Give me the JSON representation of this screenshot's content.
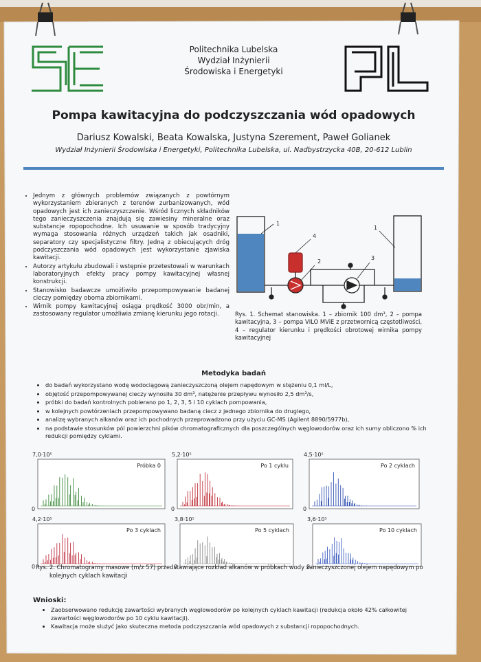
{
  "header": {
    "institution": [
      "Politechnika Lubelska",
      "Wydział Inżynierii",
      "Środowiska i Energetyki"
    ],
    "title": "Pompa kawitacyjna do podczyszczania wód opadowych",
    "authors": "Dariusz Kowalski, Beata Kowalska, Justyna Szerement, Paweł Golianek",
    "affiliation": "Wydział Inżynierii Środowiska i Energetyki, Politechnika Lubelska, ul. Nadbystrzycka 40B, 20-612 Lublin"
  },
  "intro": {
    "bullets": [
      "Jednym z głównych problemów związanych z powtórnym wykorzystaniem zbieranych z terenów zurbanizowanych, wód opadowych jest ich zanieczyszczenie. Wśród licznych składników tego zanieczyszczenia znajdują się zawiesiny mineralne oraz substancje ropopochodne. Ich usuwanie w sposób tradycyjny wymaga stosowania różnych urządzeń takich jak osadniki, separatory czy specjalistyczne filtry. Jedną z obiecujących dróg podczyszczania wód opadowych jest wykorzystanie zjawiska kawitacji.",
      "Autorzy artykułu zbudowali i wstępnie przetestowali w warunkach laboratoryjnych efekty pracy pompy kawitacyjnej własnej konstrukcji.",
      "Stanowisko badawcze umożliwiło przepompowywanie badanej cieczy pomiędzy oboma zbiornikami.",
      "Wirnik pompy kawitacyjnej osiąga prędkość 3000 obr/min, a zastosowany regulator umożliwia zmianę kierunku jego rotacji."
    ]
  },
  "figure1": {
    "labels": [
      "1",
      "4",
      "2",
      "3",
      "1"
    ],
    "caption": "Rys. 1. Schemat stanowiska. 1 – zbiornik 100 dm³, 2 – pompa kawitacyjna, 3 – pompa VILO MViE z przetwornicą częstotliwości, 4 – regulator kierunku i prędkości obrotowej wirnika pompy kawitacyjnej"
  },
  "methods": {
    "heading": "Metodyka badań",
    "bullets": [
      "do badań wykorzystano wodę wodociągową zanieczyszczoną olejem napędowym w stężeniu 0,1 ml/L,",
      "objętość przepompowywanej cieczy wynosiła 30 dm³, natężenie przepływu wynosiło 2,5 dm³/s,",
      "próbki do badań kontrolnych pobierano po 1, 2, 3, 5 i 10 cyklach pompowania,",
      "w kolejnych powtórzeniach przepompowywano badaną ciecz z jednego zbiornika do drugiego,",
      "analizę wybranych alkanów oraz ich pochodnych przeprowadzono przy użyciu GC-MS (Agilent 8890/5977b),",
      "na podstawie stosunków pól powierzchni pików chromatograficznych dla poszczególnych węglowodorów oraz ich sumy obliczono % ich redukcji pomiędzy cyklami."
    ]
  },
  "chromatograms": [
    {
      "ymax": "7,0·10⁵",
      "zero": "0",
      "label": "Próbka 0",
      "color": "#3a8a3a"
    },
    {
      "ymax": "5,2·10⁵",
      "zero": "0",
      "label": "Po 1 cyklu",
      "color": "#c0303a"
    },
    {
      "ymax": "4,5·10⁵",
      "zero": "0",
      "label": "Po 2 cyklach",
      "color": "#3050b0"
    },
    {
      "ymax": "4,2·10⁵",
      "zero": "0",
      "label": "Po 3 cyklach",
      "color": "#c03040"
    },
    {
      "ymax": "3,8·10⁵",
      "zero": "0",
      "label": "Po 5 cyklach",
      "color": "#8a8a8a"
    },
    {
      "ymax": "3,6·10⁵",
      "zero": "0",
      "label": "Po 10 cyklach",
      "color": "#4060c0"
    }
  ],
  "figure2": {
    "caption": "Rys. 2. Chromatogramy masowe (m/z 57) przedstawiające rozkład alkanów w próbkach wody zanieczyszczonej olejem napędowym po kolejnych cyklach kawitacji"
  },
  "conclusions": {
    "heading": "Wnioski:",
    "bullets": [
      "Zaobserwowano redukcję zawartości wybranych węglowodorów po kolejnych cyklach kawitacji (redukcja około 42% całkowitej zawartości węglowodorów po 10 cyklu kawitacji).",
      "Kawitacja może służyć jako skuteczna metoda podczyszczania wód opadowych z substancji ropopochodnych."
    ]
  }
}
